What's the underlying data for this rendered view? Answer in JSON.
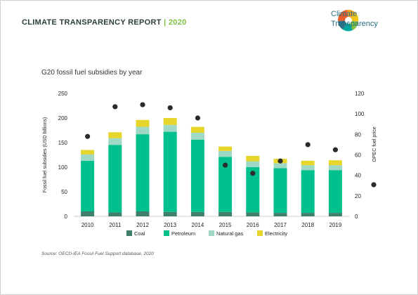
{
  "header": {
    "report_title": "CLIMATE TRANSPARENCY REPORT",
    "separator": "|",
    "year": "2020",
    "logo_line1": "Climate",
    "logo_line2": "Transparency"
  },
  "chart_heading": "G20 fossil fuel subsidies by year",
  "source": "Source: OECD-IEA Fossil Fuel Support database, 2020",
  "colors": {
    "coal": "#3f7f6e",
    "petroleum": "#00c08d",
    "natural_gas": "#9fd8c4",
    "electricity": "#e6d52a",
    "price_dot": "#2b2b2b"
  },
  "chart_data": {
    "type": "bar",
    "stacked": true,
    "categories": [
      "2010",
      "2011",
      "2012",
      "2013",
      "2014",
      "2015",
      "2016",
      "2017",
      "2018",
      "2019"
    ],
    "series": [
      {
        "name": "Coal",
        "values": [
          10,
          8,
          10,
          9,
          9,
          9,
          8,
          7,
          7,
          7
        ]
      },
      {
        "name": "Petroleum",
        "values": [
          103,
          137,
          157,
          163,
          147,
          112,
          92,
          91,
          87,
          87
        ]
      },
      {
        "name": "Natural gas",
        "values": [
          13,
          14,
          15,
          14,
          14,
          12,
          12,
          10,
          10,
          10
        ]
      },
      {
        "name": "Electricity",
        "values": [
          9,
          12,
          14,
          14,
          12,
          9,
          11,
          9,
          9,
          10
        ]
      }
    ],
    "secondary_series": {
      "name": "OPEC fuel price",
      "type": "scatter",
      "values": [
        78,
        107,
        109,
        106,
        96,
        50,
        42,
        54,
        70,
        65
      ]
    },
    "ylabel": "Fossil fuel subsidies  (USD billions)",
    "y2label": "OPEC fuel price",
    "ylim": [
      0,
      250
    ],
    "y2lim": [
      0,
      120
    ],
    "yticks": [
      "0",
      "50",
      "100",
      "150",
      "200",
      "250"
    ],
    "y2ticks": [
      "0",
      "20",
      "40",
      "60",
      "80",
      "100",
      "120"
    ],
    "legend": [
      "Coal",
      "Petroleum",
      "Natural gas",
      "Electricity"
    ],
    "legend_position": "bottom",
    "grid": false
  }
}
